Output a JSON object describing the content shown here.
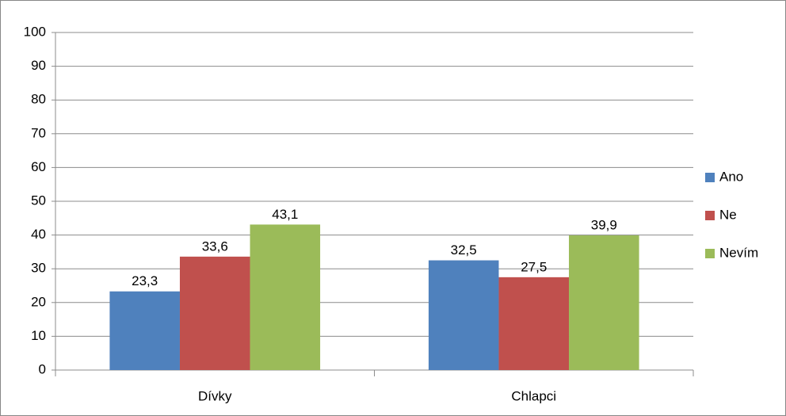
{
  "chart_data": {
    "type": "bar",
    "categories": [
      "Dívky",
      "Chlapci"
    ],
    "series": [
      {
        "name": "Ano",
        "color": "#4f81bd",
        "values": [
          23.3,
          32.5
        ],
        "value_labels": [
          "23,3",
          "32,5"
        ]
      },
      {
        "name": "Ne",
        "color": "#c0504d",
        "values": [
          33.6,
          27.5
        ],
        "value_labels": [
          "33,6",
          "27,5"
        ]
      },
      {
        "name": "Nevím",
        "color": "#9bbb59",
        "values": [
          43.1,
          39.9
        ],
        "value_labels": [
          "43,1",
          "39,9"
        ]
      }
    ],
    "ylim": [
      0,
      100
    ],
    "yticks": [
      0,
      10,
      20,
      30,
      40,
      50,
      60,
      70,
      80,
      90,
      100
    ],
    "grid": true,
    "legend": "right"
  }
}
